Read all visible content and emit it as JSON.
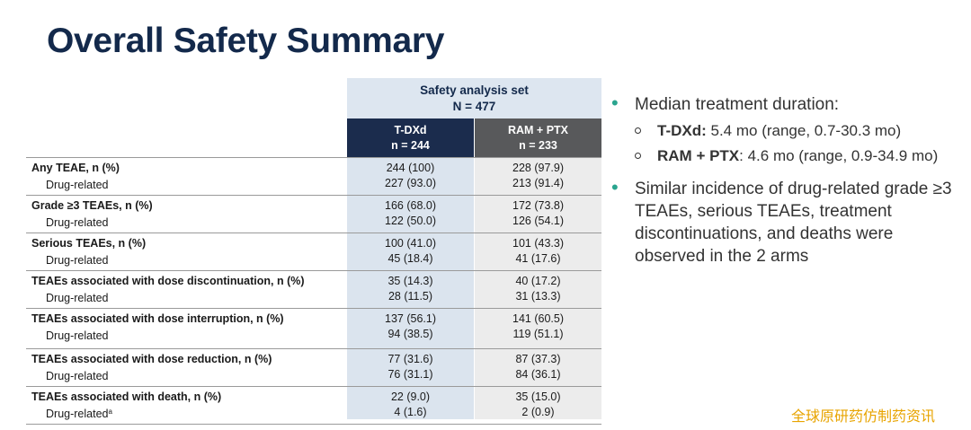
{
  "title": "Overall Safety Summary",
  "table": {
    "set_label": "Safety analysis set",
    "set_n": "N = 477",
    "arms": [
      {
        "name": "T-DXd",
        "n": "n = 244"
      },
      {
        "name": "RAM + PTX",
        "n": "n = 233"
      }
    ],
    "rows": [
      {
        "label": "Any TEAE, n (%)",
        "sub": "Drug-related",
        "sup": "",
        "a1": "244 (100)",
        "a2": "227 (93.0)",
        "b1": "228 (97.9)",
        "b2": "213 (91.4)"
      },
      {
        "label": "Grade ≥3 TEAEs, n (%)",
        "sub": "Drug-related",
        "sup": "",
        "a1": "166 (68.0)",
        "a2": "122 (50.0)",
        "b1": "172 (73.8)",
        "b2": "126 (54.1)"
      },
      {
        "label": "Serious TEAEs, n (%)",
        "sub": "Drug-related",
        "sup": "",
        "a1": "100 (41.0)",
        "a2": "45 (18.4)",
        "b1": "101 (43.3)",
        "b2": "41 (17.6)"
      },
      {
        "label": "TEAEs associated with dose discontinuation, n (%)",
        "sub": "Drug-related",
        "sup": "",
        "a1": "35 (14.3)",
        "a2": "28 (11.5)",
        "b1": "40 (17.2)",
        "b2": "31 (13.3)"
      },
      {
        "label": "TEAEs associated with dose interruption, n (%)",
        "sub": "Drug-related",
        "sup": "",
        "a1": "137 (56.1)",
        "a2": "94 (38.5)",
        "b1": "141 (60.5)",
        "b2": "119 (51.1)"
      },
      {
        "label": "TEAEs associated with dose reduction, n (%)",
        "sub": "Drug-related",
        "sup": "",
        "a1": "77 (31.6)",
        "a2": "76 (31.1)",
        "b1": "87 (37.3)",
        "b2": "84 (36.1)"
      },
      {
        "label": "TEAEs associated with death, n (%)",
        "sub": "Drug-related",
        "sup": "a",
        "a1": "22 (9.0)",
        "a2": "4 (1.6)",
        "b1": "35 (15.0)",
        "b2": "2 (0.9)"
      }
    ]
  },
  "bullets": {
    "b1": "Median treatment duration:",
    "sub": [
      {
        "bold": "T-DXd:",
        "text": " 5.4 mo (range, 0.7-30.3 mo)"
      },
      {
        "bold": "RAM + PTX",
        "text": ": 4.6 mo (range, 0.9-34.9 mo)"
      }
    ],
    "b2": "Similar incidence of drug-related grade ≥3 TEAEs, serious TEAEs, treatment discontinuations, and deaths were observed in the 2 arms"
  },
  "watermark": "全球原研药仿制药资讯",
  "colors": {
    "title": "#13294b",
    "bullet": "#2aa58f",
    "arm1": "#1b2c4d",
    "arm2": "#58595b",
    "watermark": "#e8a400"
  }
}
